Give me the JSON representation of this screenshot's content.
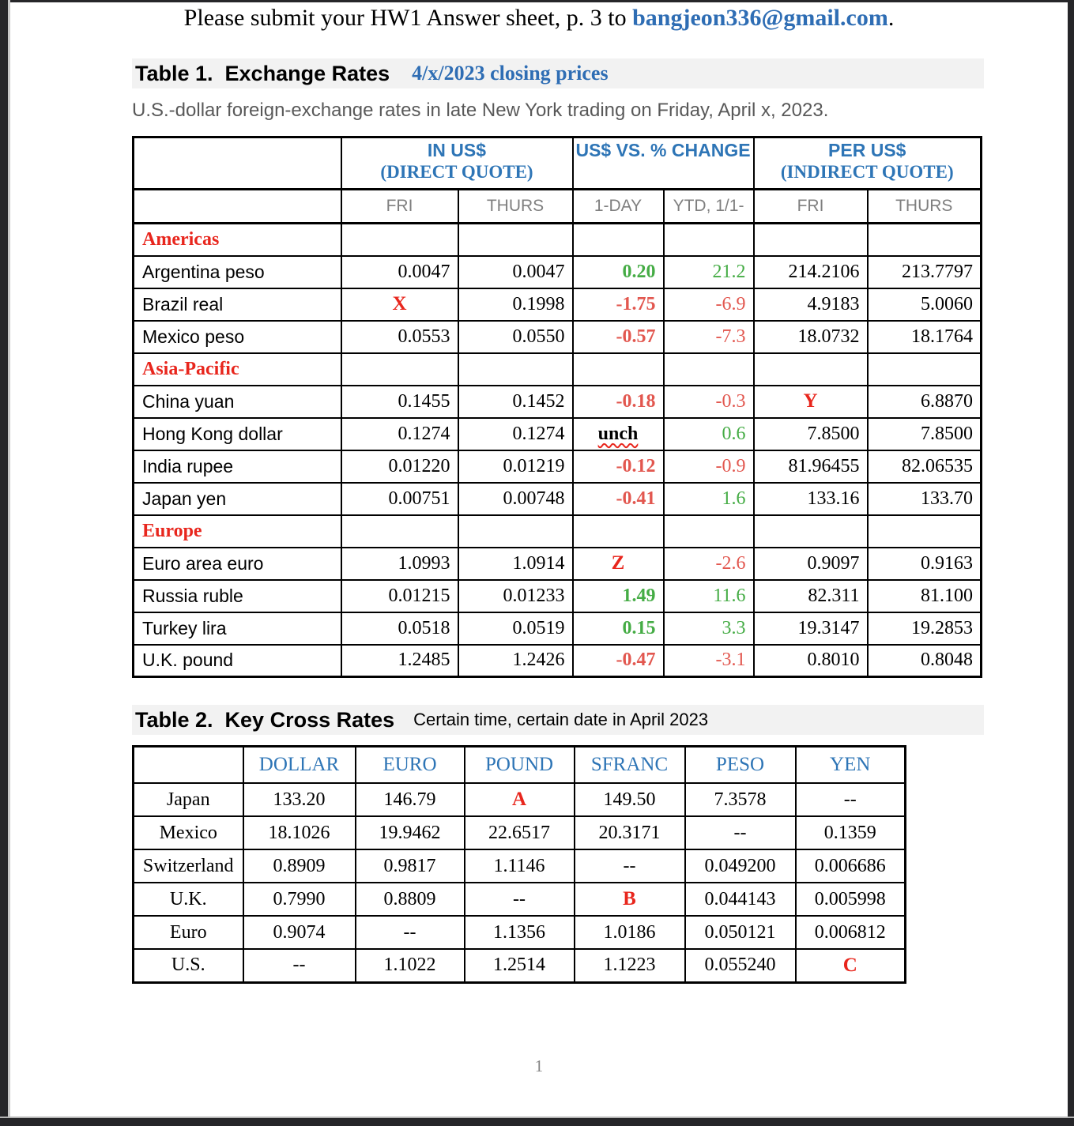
{
  "colors": {
    "link_blue": "#2e6db4",
    "header_blue": "#2e75b6",
    "red_bright": "#e8261d",
    "red_soft": "#e2574f",
    "green": "#45ac45",
    "title_band_bg": "#f2f2f2",
    "subtitle_gray": "#595959",
    "subhead_gray": "#7f7f7f",
    "page_number_gray": "#828282"
  },
  "header": {
    "prefix": "Please submit your HW1 Answer sheet, p. 3 to ",
    "email": "bangjeon336@gmail.com",
    "suffix": "."
  },
  "page": {
    "number": "1"
  },
  "table1": {
    "title": "Table 1.  Exchange Rates",
    "title_note": "4/x/2023 closing prices",
    "subtitle": "U.S.-dollar foreign-exchange rates in late New York trading on Friday, April x, 2023.",
    "header": {
      "groups": [
        {
          "line1": "IN US$",
          "line2": "(DIRECT QUOTE)"
        },
        {
          "line1": "US$ VS. % CHANGE",
          "line2": ""
        },
        {
          "line1": "PER US$",
          "line2": "(INDIRECT QUOTE)"
        }
      ],
      "sub": [
        "FRI",
        "THURS",
        "1-DAY",
        "YTD, 1/1-",
        "FRI",
        "THURS"
      ]
    },
    "rows": [
      {
        "section": "Americas"
      },
      {
        "label": "Argentina peso",
        "cells": [
          "0.0047",
          "0.0047",
          "0.20",
          "21.2",
          "214.2106",
          "213.7797"
        ]
      },
      {
        "label": "Brazil real",
        "cells": [
          {
            "v": "X",
            "type": "letter"
          },
          "0.1998",
          "-1.75",
          "-6.9",
          "4.9183",
          "5.0060"
        ]
      },
      {
        "label": "Mexico peso",
        "cells": [
          "0.0553",
          "0.0550",
          "-0.57",
          "-7.3",
          "18.0732",
          "18.1764"
        ]
      },
      {
        "section": "Asia-Pacific"
      },
      {
        "label": "China yuan",
        "cells": [
          "0.1455",
          "0.1452",
          "-0.18",
          "-0.3",
          {
            "v": "Y",
            "type": "letter"
          },
          "6.8870"
        ]
      },
      {
        "label": "Hong Kong dollar",
        "cells": [
          "0.1274",
          "0.1274",
          {
            "v": "unch",
            "type": "unch"
          },
          "0.6",
          "7.8500",
          "7.8500"
        ]
      },
      {
        "label": "India rupee",
        "cells": [
          "0.01220",
          "0.01219",
          "-0.12",
          "-0.9",
          "81.96455",
          "82.06535"
        ]
      },
      {
        "label": "Japan yen",
        "cells": [
          "0.00751",
          "0.00748",
          "-0.41",
          "1.6",
          "133.16",
          "133.70"
        ]
      },
      {
        "section": "Europe"
      },
      {
        "label": "Euro area euro",
        "cells": [
          "1.0993",
          "1.0914",
          {
            "v": "Z",
            "type": "letter"
          },
          "-2.6",
          "0.9097",
          "0.9163"
        ]
      },
      {
        "label": "Russia ruble",
        "cells": [
          "0.01215",
          "0.01233",
          "1.49",
          "11.6",
          "82.311",
          "81.100"
        ]
      },
      {
        "label": "Turkey lira",
        "cells": [
          "0.0518",
          "0.0519",
          "0.15",
          "3.3",
          "19.3147",
          "19.2853"
        ]
      },
      {
        "label": "U.K. pound",
        "cells": [
          "1.2485",
          "1.2426",
          "-0.47",
          "-3.1",
          "0.8010",
          "0.8048"
        ]
      }
    ]
  },
  "table2": {
    "title": "Table 2.  Key Cross Rates",
    "title_note": "Certain time, certain date in April 2023",
    "columns": [
      "DOLLAR",
      "EURO",
      "POUND",
      "SFRANC",
      "PESO",
      "YEN"
    ],
    "rows": [
      {
        "label": "Japan",
        "cells": [
          "133.20",
          "146.79",
          {
            "v": "A",
            "type": "letter"
          },
          "149.50",
          "7.3578",
          "--"
        ]
      },
      {
        "label": "Mexico",
        "cells": [
          "18.1026",
          "19.9462",
          "22.6517",
          "20.3171",
          "--",
          "0.1359"
        ]
      },
      {
        "label": "Switzerland",
        "cells": [
          "0.8909",
          "0.9817",
          "1.1146",
          "--",
          "0.049200",
          "0.006686"
        ]
      },
      {
        "label": "U.K.",
        "cells": [
          "0.7990",
          "0.8809",
          "--",
          {
            "v": "B",
            "type": "letter"
          },
          "0.044143",
          "0.005998"
        ]
      },
      {
        "label": "Euro",
        "cells": [
          "0.9074",
          "--",
          "1.1356",
          "1.0186",
          "0.050121",
          "0.006812"
        ]
      },
      {
        "label": "U.S.",
        "cells": [
          "--",
          "1.1022",
          "1.2514",
          "1.1223",
          "0.055240",
          {
            "v": "C",
            "type": "letter"
          }
        ]
      }
    ]
  }
}
